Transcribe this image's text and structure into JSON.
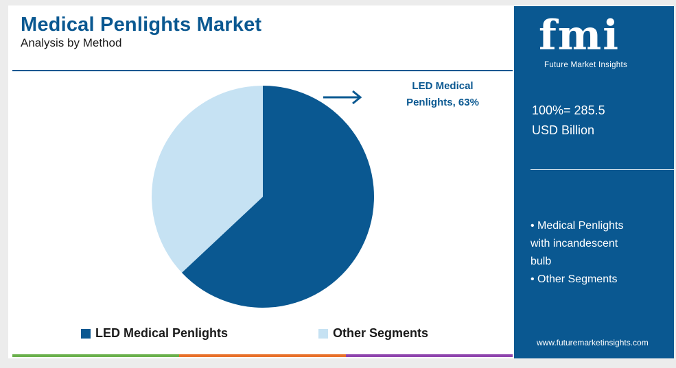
{
  "header": {
    "title": "Medical Penlights Market",
    "subtitle": "Analysis by Method"
  },
  "callout": {
    "line1": "LED Medical",
    "line2": "Penlights, 63%"
  },
  "chart_data": {
    "type": "pie",
    "title": "Medical Penlights Market",
    "subtitle": "Analysis by Method",
    "categories": [
      "LED Medical Penlights",
      "Other Segments"
    ],
    "values": [
      63,
      37
    ],
    "unit": "%",
    "colors": [
      "#0a5891",
      "#c6e2f3"
    ],
    "legend_position": "bottom",
    "annotation": "LED Medical Penlights, 63%"
  },
  "legend": {
    "items": [
      {
        "label": "LED Medical Penlights",
        "color": "#0a5891"
      },
      {
        "label": "Other Segments",
        "color": "#c6e2f3"
      }
    ]
  },
  "sidebar": {
    "logo_text": "fmi",
    "logo_subtitle": "Future Market Insights",
    "total_line1": "100%= 285.5",
    "total_line2": "USD Billion",
    "list": [
      "• Medical Penlights",
      "with incandescent",
      "bulb",
      "• Other Segments"
    ],
    "url": "www.futuremarketinsights.com"
  },
  "colors": {
    "brand": "#0a5891",
    "light": "#c6e2f3",
    "bar_green": "#6ab04c",
    "bar_orange": "#e8702a",
    "bar_purple": "#8e44ad"
  }
}
